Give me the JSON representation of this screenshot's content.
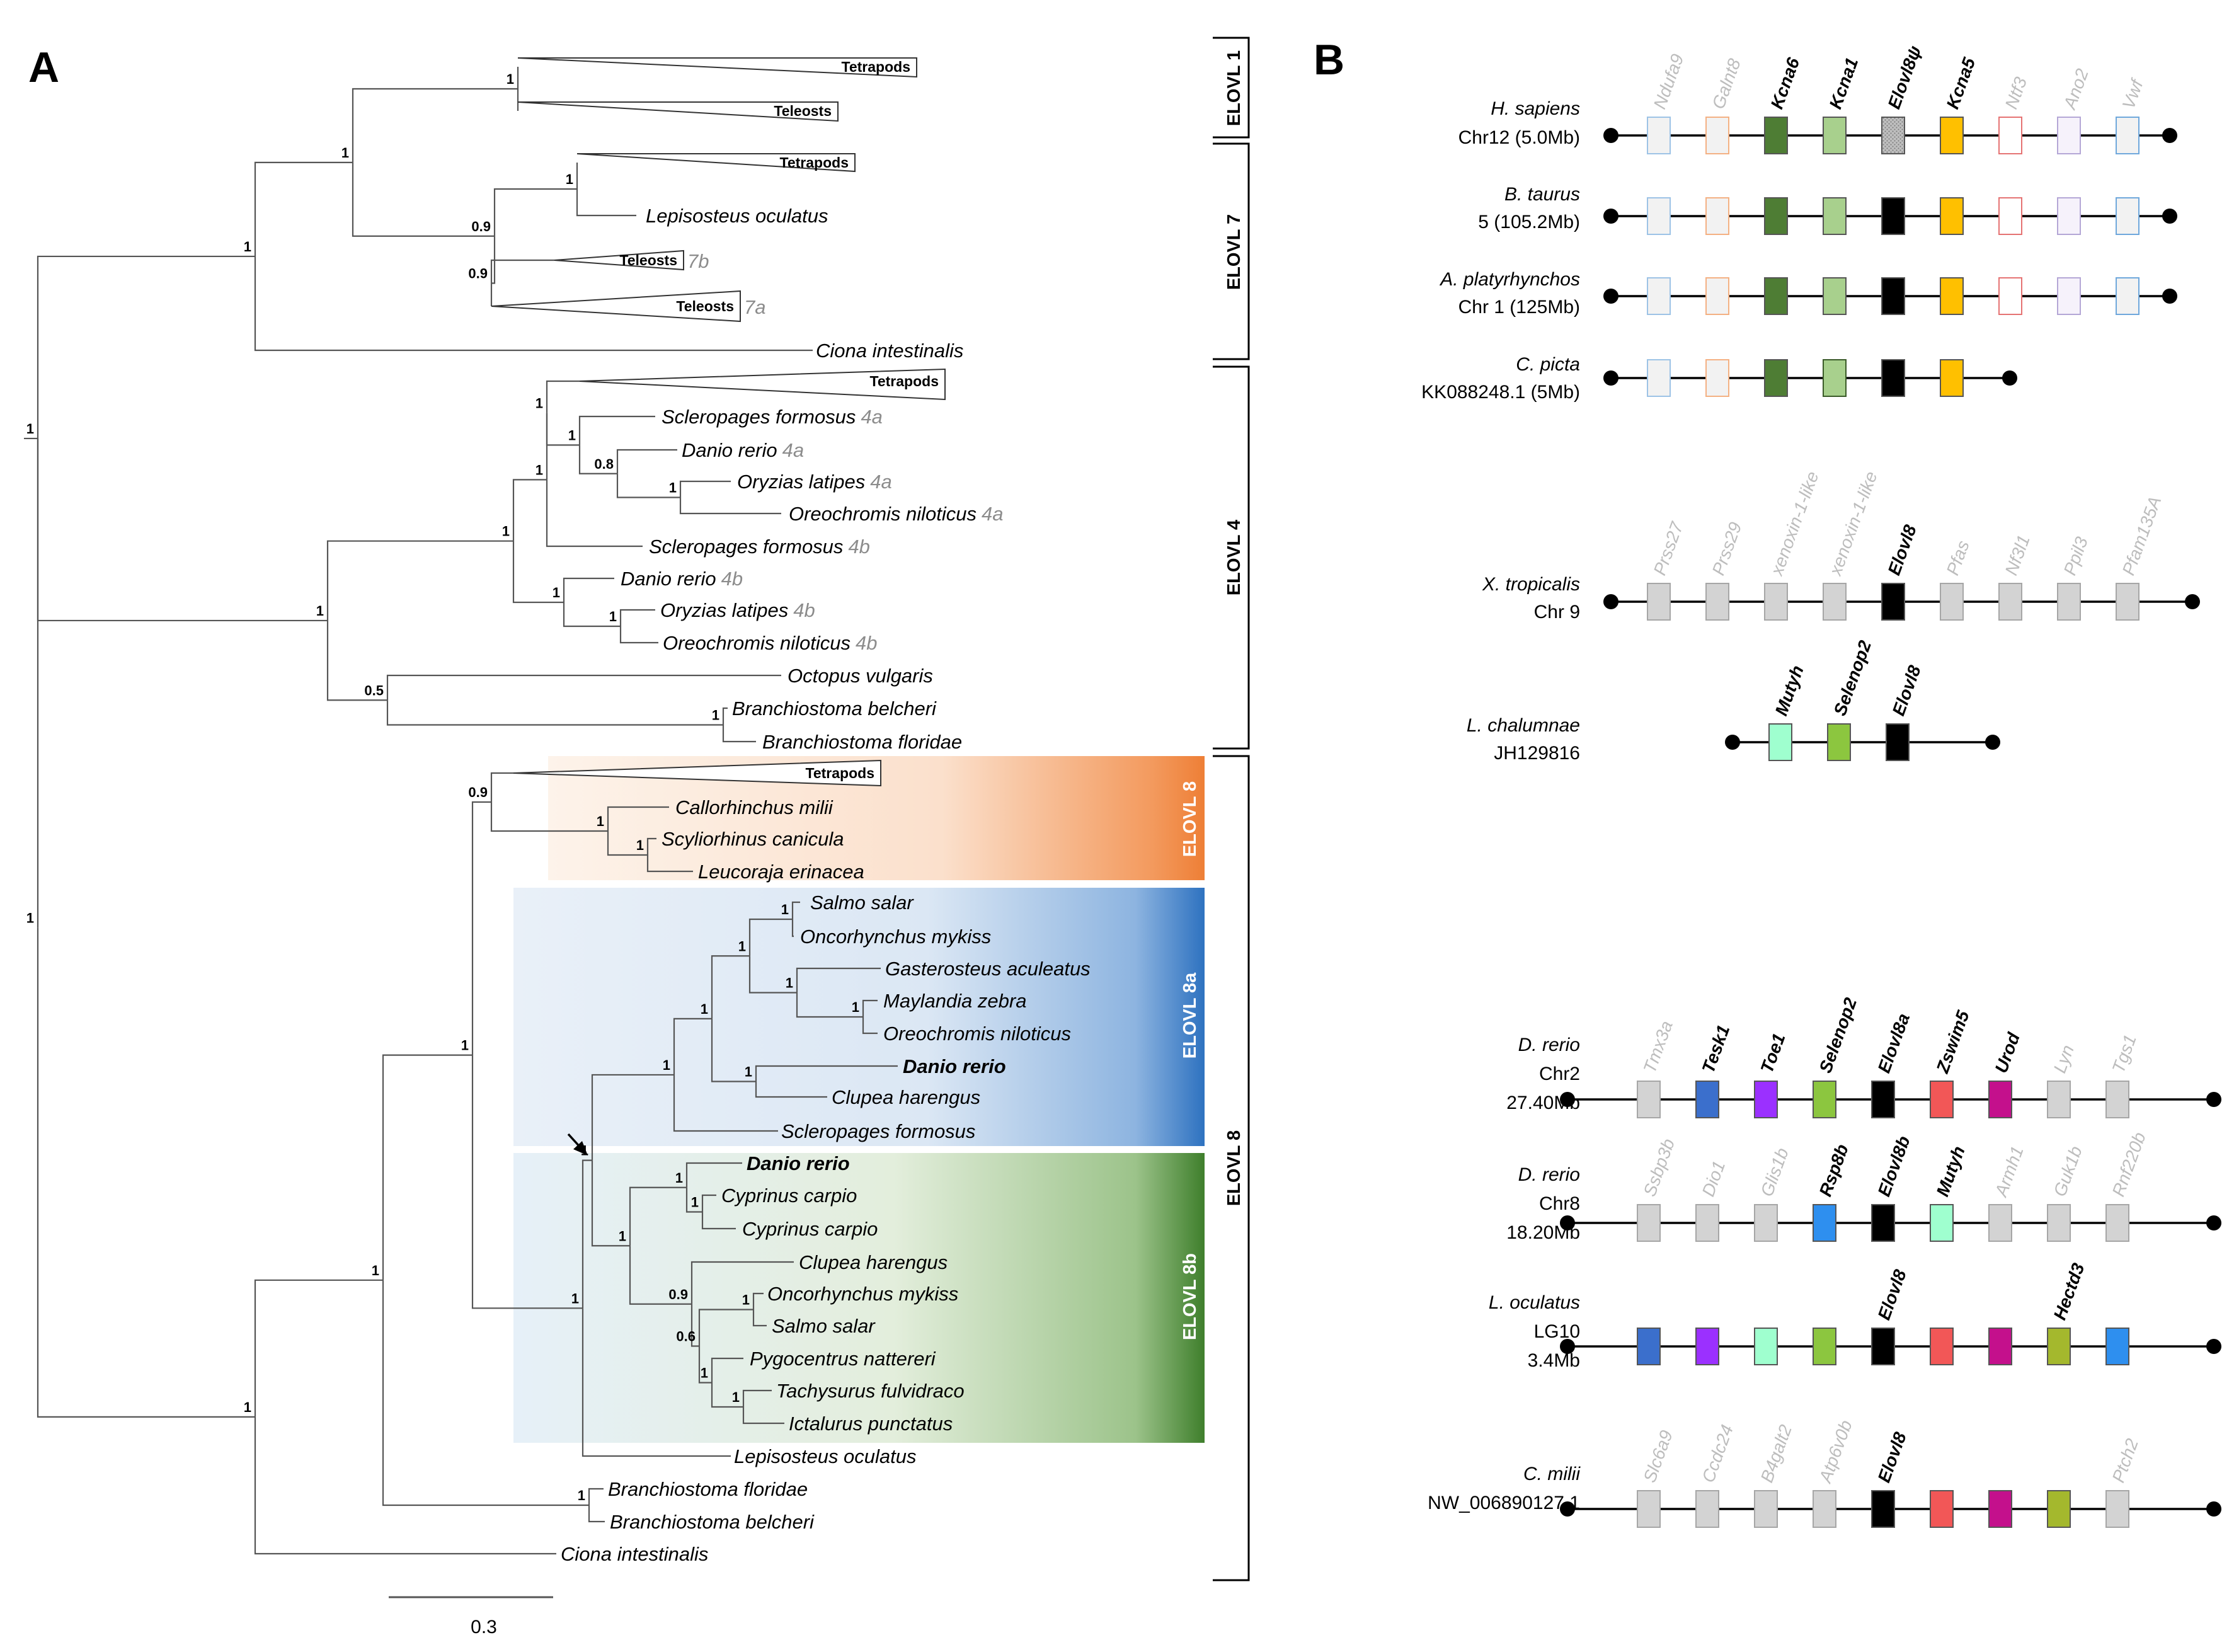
{
  "panels": {
    "a": "A",
    "b": "B"
  },
  "scale_bar": {
    "label": "0.3"
  },
  "clades": {
    "elovl1": "ELOVL 1",
    "elovl7": "ELOVL 7",
    "elovl4": "ELOVL 4",
    "elovl8": "ELOVL 8",
    "elovl8_sub": "ELOVL 8",
    "elovl8a": "ELOVL 8a",
    "elovl8b": "ELOVL 8b"
  },
  "tree": {
    "tips": [
      {
        "name": "Tetrapods",
        "collapsed": true
      },
      {
        "name": "Teleosts",
        "collapsed": true
      },
      {
        "name": "Tetrapods",
        "collapsed": true
      },
      {
        "name": "Lepisosteus oculatus"
      },
      {
        "name": "Teleosts",
        "suffix": "7b",
        "collapsed": true
      },
      {
        "name": "Teleosts",
        "suffix": "7a",
        "collapsed": true
      },
      {
        "name": "Ciona intestinalis"
      },
      {
        "name": "Tetrapods",
        "collapsed": true
      },
      {
        "name": "Scleropages formosus",
        "suffix": "4a"
      },
      {
        "name": "Danio rerio",
        "suffix": "4a"
      },
      {
        "name": "Oryzias latipes",
        "suffix": "4a"
      },
      {
        "name": "Oreochromis niloticus",
        "suffix": "4a"
      },
      {
        "name": "Scleropages formosus",
        "suffix": "4b"
      },
      {
        "name": "Danio rerio",
        "suffix": "4b"
      },
      {
        "name": "Oryzias latipes",
        "suffix": "4b"
      },
      {
        "name": "Oreochromis niloticus",
        "suffix": "4b"
      },
      {
        "name": "Octopus vulgaris"
      },
      {
        "name": "Branchiostoma belcheri"
      },
      {
        "name": "Branchiostoma floridae"
      },
      {
        "name": "Tetrapods",
        "collapsed": true
      },
      {
        "name": "Callorhinchus milii"
      },
      {
        "name": "Scyliorhinus canicula"
      },
      {
        "name": "Leucoraja erinacea"
      },
      {
        "name": "Salmo salar"
      },
      {
        "name": "Oncorhynchus mykiss"
      },
      {
        "name": "Gasterosteus aculeatus"
      },
      {
        "name": "Maylandia zebra"
      },
      {
        "name": "Oreochromis niloticus"
      },
      {
        "name": "Danio rerio",
        "bold": true
      },
      {
        "name": "Clupea harengus"
      },
      {
        "name": "Scleropages formosus"
      },
      {
        "name": "Danio rerio",
        "bold": true
      },
      {
        "name": "Cyprinus carpio"
      },
      {
        "name": "Cyprinus carpio"
      },
      {
        "name": "Clupea harengus"
      },
      {
        "name": "Oncorhynchus mykiss"
      },
      {
        "name": "Salmo salar"
      },
      {
        "name": "Pygocentrus nattereri"
      },
      {
        "name": "Tachysurus fulvidraco"
      },
      {
        "name": "Ictalurus punctatus"
      },
      {
        "name": "Lepisosteus oculatus"
      },
      {
        "name": "Branchiostoma floridae"
      },
      {
        "name": "Branchiostoma belcheri"
      },
      {
        "name": "Ciona intestinalis"
      }
    ],
    "supports": [
      "1",
      "1",
      "0.9",
      "1",
      "0.9",
      "1",
      "1",
      "1",
      "0.8",
      "1",
      "1",
      "1",
      "1",
      "1",
      "1",
      "1",
      "0.5",
      "1",
      "1",
      "0.9",
      "1",
      "1",
      "1",
      "1",
      "1",
      "1",
      "1",
      "1",
      "1",
      "1",
      "1",
      "1",
      "1",
      "1",
      "0.9",
      "1",
      "0.6",
      "1",
      "1",
      "1",
      "1",
      "1",
      "1"
    ]
  },
  "synteny": {
    "colors": {
      "grey": "#d3d3d3",
      "dkgreen": "#4e7d34",
      "ltgreen": "#a8d08d",
      "gold": "#ffc000",
      "black": "#000000",
      "mint": "#9fffcf",
      "olive": "#a4b82d",
      "blue": "#3b6fcc",
      "purple": "#9b30ff",
      "ltblue": "#2e8fef",
      "red": "#f25757",
      "magenta": "#c4108c",
      "lime": "#8cc63f"
    },
    "rows": [
      {
        "species": "H. sapiens",
        "chrom": "Chr12 (5.0Mb)",
        "genes": [
          {
            "label": "Ndufa9",
            "faded": true,
            "fill": "#f2f2f2",
            "stroke": "#9dc3e6"
          },
          {
            "label": "Galnt8",
            "faded": true,
            "fill": "#f2f2f2",
            "stroke": "#f4b183"
          },
          {
            "label": "Kcna6",
            "fill": "#4e7d34"
          },
          {
            "label": "Kcna1",
            "fill": "#a8d08d"
          },
          {
            "label": "Elovl8ψ",
            "fill": "#a6a6a6",
            "hatched": true
          },
          {
            "label": "Kcna5",
            "fill": "#ffc000"
          },
          {
            "label": "Ntf3",
            "faded": true,
            "fill": "#ffffff",
            "stroke": "#e57373"
          },
          {
            "label": "Ano2",
            "faded": true,
            "fill": "#f6f2fb",
            "stroke": "#b4a7d6"
          },
          {
            "label": "Vwf",
            "faded": true,
            "fill": "#f2f2f2",
            "stroke": "#6fa8dc"
          }
        ]
      },
      {
        "species": "B. taurus",
        "chrom": "5 (105.2Mb)",
        "genes": [
          {
            "fill": "#f2f2f2",
            "stroke": "#9dc3e6"
          },
          {
            "fill": "#f2f2f2",
            "stroke": "#f4b183"
          },
          {
            "fill": "#4e7d34"
          },
          {
            "fill": "#a8d08d"
          },
          {
            "fill": "#000000"
          },
          {
            "fill": "#ffc000"
          },
          {
            "fill": "#ffffff",
            "stroke": "#e57373"
          },
          {
            "fill": "#f6f2fb",
            "stroke": "#b4a7d6"
          },
          {
            "fill": "#f2f2f2",
            "stroke": "#6fa8dc"
          }
        ]
      },
      {
        "species": "A. platyrhynchos",
        "chrom": "Chr 1 (125Mb)",
        "genes": [
          {
            "fill": "#f2f2f2",
            "stroke": "#9dc3e6"
          },
          {
            "fill": "#f2f2f2",
            "stroke": "#f4b183"
          },
          {
            "fill": "#4e7d34"
          },
          {
            "fill": "#a8d08d"
          },
          {
            "fill": "#000000"
          },
          {
            "fill": "#ffc000"
          },
          {
            "fill": "#ffffff",
            "stroke": "#e57373"
          },
          {
            "fill": "#f6f2fb",
            "stroke": "#b4a7d6"
          },
          {
            "fill": "#f2f2f2",
            "stroke": "#6fa8dc"
          }
        ]
      },
      {
        "species": "C. picta",
        "chrom": "KK088248.1 (5Mb)",
        "genes": [
          {
            "fill": "#f2f2f2",
            "stroke": "#9dc3e6"
          },
          {
            "fill": "#f2f2f2",
            "stroke": "#f4b183"
          },
          {
            "fill": "#4e7d34"
          },
          {
            "fill": "#a8d08d",
            "stroke": "#3a5a28"
          },
          {
            "fill": "#000000"
          },
          {
            "fill": "#ffc000"
          }
        ]
      },
      {
        "species": "X. tropicalis",
        "chrom": "Chr 9",
        "genes": [
          {
            "label": "Prss27",
            "faded": true,
            "fill": "#d3d3d3"
          },
          {
            "label": "Prss29",
            "faded": true,
            "fill": "#d3d3d3"
          },
          {
            "label": "xenoxin-1-like",
            "faded": true,
            "fill": "#d3d3d3"
          },
          {
            "label": "xenoxin-1-like",
            "faded": true,
            "fill": "#d3d3d3"
          },
          {
            "label": "Elovl8",
            "fill": "#000000"
          },
          {
            "label": "Pfas",
            "faded": true,
            "fill": "#d3d3d3"
          },
          {
            "label": "Nf3l1",
            "faded": true,
            "fill": "#d3d3d3"
          },
          {
            "label": "Ppil3",
            "faded": true,
            "fill": "#d3d3d3"
          },
          {
            "label": "Pfam135A",
            "faded": true,
            "fill": "#d3d3d3"
          }
        ]
      },
      {
        "species": "L. chalumnae",
        "chrom": "JH129816",
        "genes": [
          {
            "label": "Mutyh",
            "fill": "#9fffcf"
          },
          {
            "label": "Selenop2",
            "fill": "#8cc63f"
          },
          {
            "label": "Elovl8",
            "fill": "#000000"
          }
        ]
      },
      {
        "species": "D. rerio",
        "chrom": "Chr2",
        "chrom2": "27.40Mb",
        "genes": [
          {
            "label": "Tmx3a",
            "faded": true,
            "fill": "#d3d3d3"
          },
          {
            "label": "Tesk1",
            "fill": "#3b6fcc"
          },
          {
            "label": "Toe1",
            "fill": "#9b30ff"
          },
          {
            "label": "Selenop2",
            "fill": "#8cc63f"
          },
          {
            "label": "Elovl8a",
            "fill": "#000000"
          },
          {
            "label": "Zswim5",
            "fill": "#f25757"
          },
          {
            "label": "Urod",
            "fill": "#c4108c"
          },
          {
            "label": "Lyn",
            "faded": true,
            "fill": "#d3d3d3"
          },
          {
            "label": "Tgs1",
            "faded": true,
            "fill": "#d3d3d3"
          }
        ]
      },
      {
        "species": "D. rerio",
        "chrom": "Chr8",
        "chrom2": "18.20Mb",
        "genes": [
          {
            "label": "Ssbp3b",
            "faded": true,
            "fill": "#d3d3d3"
          },
          {
            "label": "Dio1",
            "faded": true,
            "fill": "#d3d3d3"
          },
          {
            "label": "Glis1b",
            "faded": true,
            "fill": "#d3d3d3"
          },
          {
            "label": "Rsp8b",
            "fill": "#2e8fef"
          },
          {
            "label": "Elovl8b",
            "fill": "#000000"
          },
          {
            "label": "Mutyh",
            "fill": "#9fffcf"
          },
          {
            "label": "Armh1",
            "faded": true,
            "fill": "#d3d3d3"
          },
          {
            "label": "Guk1b",
            "faded": true,
            "fill": "#d3d3d3"
          },
          {
            "label": "Rnf220b",
            "faded": true,
            "fill": "#d3d3d3"
          }
        ]
      },
      {
        "species": "L. oculatus",
        "chrom": "LG10",
        "chrom2": "3.4Mb",
        "genes": [
          {
            "fill": "#3b6fcc"
          },
          {
            "fill": "#9b30ff"
          },
          {
            "fill": "#9fffcf"
          },
          {
            "fill": "#8cc63f"
          },
          {
            "label": "Elovl8",
            "fill": "#000000"
          },
          {
            "fill": "#f25757"
          },
          {
            "fill": "#c4108c"
          },
          {
            "label": "Hectd3",
            "fill": "#a4b82d"
          },
          {
            "fill": "#2e8fef"
          }
        ]
      },
      {
        "species": "C. milii",
        "chrom": "NW_006890127.1",
        "genes": [
          {
            "label": "Slc6a9",
            "faded": true,
            "fill": "#d3d3d3"
          },
          {
            "label": "Ccdc24",
            "faded": true,
            "fill": "#d3d3d3"
          },
          {
            "label": "B4galt2",
            "faded": true,
            "fill": "#d3d3d3"
          },
          {
            "label": "Atp6v0b",
            "faded": true,
            "fill": "#d3d3d3"
          },
          {
            "label": "Elovl8",
            "fill": "#000000"
          },
          {
            "fill": "#f25757"
          },
          {
            "fill": "#c4108c"
          },
          {
            "fill": "#a4b82d"
          },
          {
            "label": "Ptch2",
            "faded": true,
            "fill": "#d3d3d3"
          }
        ]
      }
    ]
  }
}
